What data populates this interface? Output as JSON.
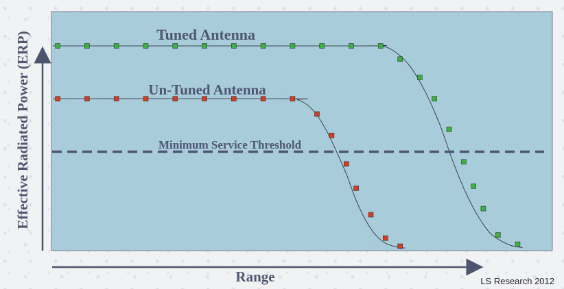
{
  "chart_data": {
    "type": "line",
    "xlabel": "Range",
    "ylabel": "Effective Radiated Power (ERP)",
    "credit": "LS Research 2012",
    "plot_bg": "#a8ccd9",
    "grid": false,
    "xlim": [
      0,
      100
    ],
    "ylim": [
      0,
      100
    ],
    "series": [
      {
        "name": "Tuned Antenna",
        "color": "#3cb043",
        "x": [
          1,
          7,
          13,
          19,
          25,
          31,
          37,
          43,
          49,
          55,
          61,
          67,
          71,
          75,
          78,
          81,
          84,
          86,
          88,
          91,
          95
        ],
        "y": [
          100,
          100,
          100,
          100,
          100,
          100,
          100,
          100,
          100,
          100,
          100,
          100,
          93.5,
          84.5,
          74,
          59,
          43,
          31,
          20,
          7,
          2.5
        ],
        "curve_x": [
          0,
          62,
          67,
          70,
          73,
          76,
          79,
          81.5,
          84,
          86.5,
          89,
          91,
          93.5,
          96
        ],
        "curve_y": [
          100,
          100,
          100,
          97,
          90,
          78,
          62,
          45,
          30,
          18,
          9,
          5,
          2,
          0.8
        ]
      },
      {
        "name": "Un-Tuned Antenna",
        "color": "#d43c27",
        "x": [
          1,
          7,
          13,
          19,
          25,
          31,
          37,
          43,
          49,
          54,
          57,
          60,
          62,
          65,
          68,
          71
        ],
        "y": [
          74,
          74,
          74,
          74,
          74,
          74,
          74,
          74,
          74,
          66.5,
          56,
          42,
          30,
          17,
          5.5,
          1.5
        ],
        "curve_x": [
          0,
          48,
          50,
          52,
          54,
          56,
          58,
          60,
          62,
          64,
          66,
          68,
          70,
          72
        ],
        "curve_y": [
          74,
          74,
          73.5,
          71,
          66,
          58,
          48,
          37,
          24,
          14,
          7,
          3,
          1.3,
          0.6
        ]
      }
    ],
    "threshold": {
      "label": "Minimum Service Threshold",
      "y": 48
    }
  }
}
